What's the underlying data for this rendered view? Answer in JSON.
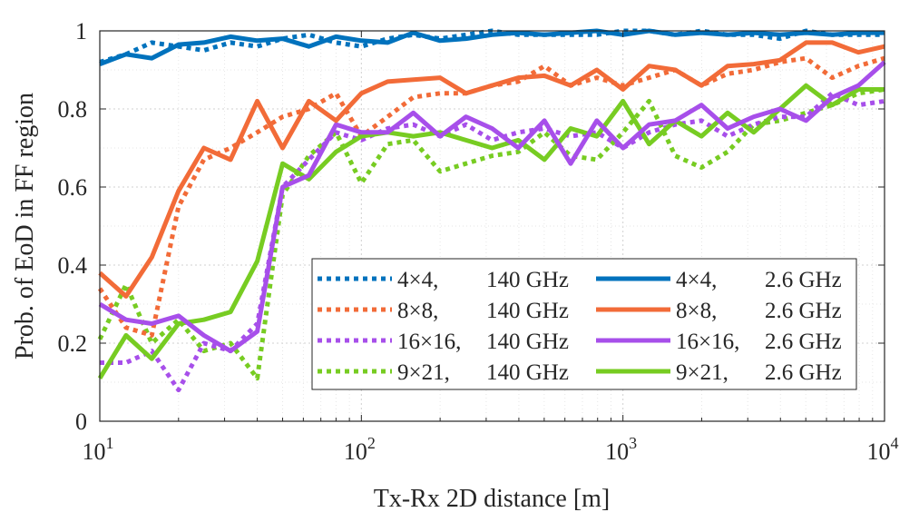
{
  "chart_data": {
    "type": "line",
    "xscale": "log",
    "xlim": [
      10,
      10000
    ],
    "ylim": [
      0,
      1
    ],
    "grid": true,
    "minor_grid": true,
    "xlabel": "Tx-Rx 2D distance [m]",
    "ylabel": "Prob. of EoD in FF region",
    "xticks": [
      {
        "base": "10",
        "exp": "1"
      },
      {
        "base": "10",
        "exp": "2"
      },
      {
        "base": "10",
        "exp": "3"
      },
      {
        "base": "10",
        "exp": "4"
      }
    ],
    "yticks": [
      "0",
      "0.2",
      "0.4",
      "0.6",
      "0.8",
      "1"
    ],
    "legend_position": "lower-right",
    "series": [
      {
        "id": "s44d",
        "size": "4×4,",
        "freq": "140 GHz",
        "style": "dotted",
        "color": "#0072BD",
        "x": [
          10,
          12.6,
          15.8,
          20,
          25,
          31.6,
          40,
          50,
          63,
          80,
          100,
          126,
          158,
          200,
          251,
          316,
          398,
          501,
          631,
          794,
          1000,
          1259,
          1585,
          1995,
          2512,
          3162,
          3981,
          5012,
          6310,
          7943,
          10000
        ],
        "values": [
          0.92,
          0.94,
          0.97,
          0.96,
          0.95,
          0.97,
          0.96,
          0.98,
          0.99,
          0.97,
          0.96,
          0.98,
          0.99,
          0.98,
          0.99,
          1.0,
          0.99,
          0.99,
          0.99,
          0.99,
          1.0,
          1.0,
          0.99,
          1.0,
          0.99,
          0.99,
          0.98,
          1.0,
          0.99,
          0.99,
          0.99
        ]
      },
      {
        "id": "s44s",
        "size": "4×4,",
        "freq": "2.6 GHz",
        "style": "solid",
        "color": "#0072BD",
        "x": [
          10,
          12.6,
          15.8,
          20,
          25,
          31.6,
          40,
          50,
          63,
          80,
          100,
          126,
          158,
          200,
          251,
          316,
          398,
          501,
          631,
          794,
          1000,
          1259,
          1585,
          1995,
          2512,
          3162,
          3981,
          5012,
          6310,
          7943,
          10000
        ],
        "values": [
          0.915,
          0.94,
          0.93,
          0.965,
          0.97,
          0.985,
          0.975,
          0.98,
          0.96,
          0.985,
          0.975,
          0.97,
          0.995,
          0.975,
          0.98,
          0.99,
          0.995,
          0.99,
          0.995,
          1.0,
          0.99,
          1.0,
          0.99,
          0.995,
          0.99,
          0.995,
          0.99,
          0.995,
          0.99,
          0.995,
          0.995
        ]
      },
      {
        "id": "s88d",
        "size": "8×8,",
        "freq": "140 GHz",
        "style": "dotted",
        "color": "#F26B38",
        "x": [
          10,
          12.6,
          15.8,
          20,
          25,
          31.6,
          40,
          50,
          63,
          80,
          100,
          126,
          158,
          200,
          251,
          316,
          398,
          501,
          631,
          794,
          1000,
          1259,
          1585,
          1995,
          2512,
          3162,
          3981,
          5012,
          6310,
          7943,
          10000
        ],
        "values": [
          0.34,
          0.24,
          0.22,
          0.55,
          0.67,
          0.7,
          0.74,
          0.78,
          0.8,
          0.84,
          0.73,
          0.78,
          0.83,
          0.84,
          0.84,
          0.86,
          0.87,
          0.91,
          0.86,
          0.88,
          0.86,
          0.88,
          0.9,
          0.86,
          0.89,
          0.9,
          0.92,
          0.93,
          0.88,
          0.91,
          0.93
        ]
      },
      {
        "id": "s88s",
        "size": "8×8,",
        "freq": "2.6 GHz",
        "style": "solid",
        "color": "#F26B38",
        "x": [
          10,
          12.6,
          15.8,
          20,
          25,
          31.6,
          40,
          50,
          63,
          80,
          100,
          126,
          158,
          200,
          251,
          316,
          398,
          501,
          631,
          794,
          1000,
          1259,
          1585,
          1995,
          2512,
          3162,
          3981,
          5012,
          6310,
          7943,
          10000
        ],
        "values": [
          0.38,
          0.32,
          0.42,
          0.59,
          0.7,
          0.67,
          0.82,
          0.7,
          0.82,
          0.77,
          0.84,
          0.87,
          0.875,
          0.88,
          0.84,
          0.86,
          0.88,
          0.885,
          0.86,
          0.9,
          0.85,
          0.91,
          0.9,
          0.86,
          0.91,
          0.915,
          0.925,
          0.97,
          0.97,
          0.945,
          0.96
        ]
      },
      {
        "id": "s1616d",
        "size": "16×16,",
        "freq": "140 GHz",
        "style": "dotted",
        "color": "#A74FEA",
        "x": [
          10,
          12.6,
          15.8,
          20,
          25,
          31.6,
          40,
          50,
          63,
          80,
          100,
          126,
          158,
          200,
          251,
          316,
          398,
          501,
          631,
          794,
          1000,
          1259,
          1585,
          1995,
          2512,
          3162,
          3981,
          5012,
          6310,
          7943,
          10000
        ],
        "values": [
          0.15,
          0.15,
          0.18,
          0.08,
          0.2,
          0.18,
          0.25,
          0.6,
          0.67,
          0.74,
          0.72,
          0.75,
          0.76,
          0.73,
          0.76,
          0.72,
          0.74,
          0.75,
          0.73,
          0.74,
          0.7,
          0.74,
          0.76,
          0.77,
          0.73,
          0.76,
          0.78,
          0.78,
          0.84,
          0.81,
          0.82
        ]
      },
      {
        "id": "s1616s",
        "size": "16×16,",
        "freq": "2.6 GHz",
        "style": "solid",
        "color": "#A74FEA",
        "x": [
          10,
          12.6,
          15.8,
          20,
          25,
          31.6,
          40,
          50,
          63,
          80,
          100,
          126,
          158,
          200,
          251,
          316,
          398,
          501,
          631,
          794,
          1000,
          1259,
          1585,
          1995,
          2512,
          3162,
          3981,
          5012,
          6310,
          7943,
          10000
        ],
        "values": [
          0.3,
          0.26,
          0.25,
          0.27,
          0.22,
          0.18,
          0.23,
          0.6,
          0.63,
          0.76,
          0.74,
          0.74,
          0.79,
          0.73,
          0.78,
          0.75,
          0.7,
          0.77,
          0.66,
          0.77,
          0.7,
          0.76,
          0.77,
          0.81,
          0.75,
          0.78,
          0.8,
          0.77,
          0.83,
          0.86,
          0.92
        ]
      },
      {
        "id": "s921d",
        "size": "9×21,",
        "freq": "140 GHz",
        "style": "dotted",
        "color": "#77CC22",
        "x": [
          10,
          12.6,
          15.8,
          20,
          25,
          31.6,
          40,
          50,
          63,
          80,
          100,
          126,
          158,
          200,
          251,
          316,
          398,
          501,
          631,
          794,
          1000,
          1259,
          1585,
          1995,
          2512,
          3162,
          3981,
          5012,
          6310,
          7943,
          10000
        ],
        "values": [
          0.21,
          0.35,
          0.2,
          0.26,
          0.18,
          0.2,
          0.11,
          0.58,
          0.68,
          0.74,
          0.61,
          0.71,
          0.72,
          0.64,
          0.66,
          0.68,
          0.69,
          0.74,
          0.68,
          0.67,
          0.74,
          0.82,
          0.68,
          0.65,
          0.69,
          0.76,
          0.77,
          0.79,
          0.81,
          0.84,
          0.85
        ]
      },
      {
        "id": "s921s",
        "size": "9×21,",
        "freq": "2.6 GHz",
        "style": "solid",
        "color": "#77CC22",
        "x": [
          10,
          12.6,
          15.8,
          20,
          25,
          31.6,
          40,
          50,
          63,
          80,
          100,
          126,
          158,
          200,
          251,
          316,
          398,
          501,
          631,
          794,
          1000,
          1259,
          1585,
          1995,
          2512,
          3162,
          3981,
          5012,
          6310,
          7943,
          10000
        ],
        "values": [
          0.11,
          0.22,
          0.16,
          0.25,
          0.26,
          0.28,
          0.41,
          0.66,
          0.62,
          0.69,
          0.73,
          0.74,
          0.73,
          0.74,
          0.72,
          0.7,
          0.72,
          0.67,
          0.75,
          0.73,
          0.82,
          0.71,
          0.77,
          0.73,
          0.79,
          0.74,
          0.8,
          0.86,
          0.81,
          0.85,
          0.85
        ]
      }
    ]
  }
}
